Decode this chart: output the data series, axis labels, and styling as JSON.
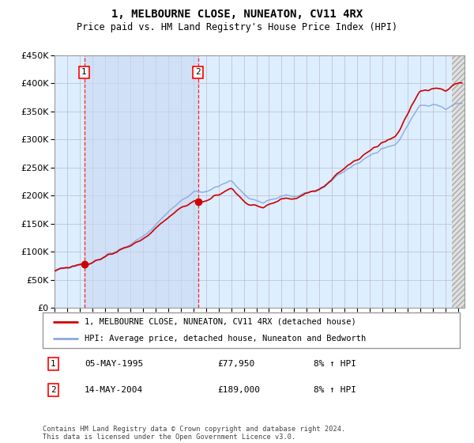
{
  "title": "1, MELBOURNE CLOSE, NUNEATON, CV11 4RX",
  "subtitle": "Price paid vs. HM Land Registry's House Price Index (HPI)",
  "legend_line1": "1, MELBOURNE CLOSE, NUNEATON, CV11 4RX (detached house)",
  "legend_line2": "HPI: Average price, detached house, Nuneaton and Bedworth",
  "annotation1_label": "1",
  "annotation1_date": "05-MAY-1995",
  "annotation1_price": "£77,950",
  "annotation1_hpi": "8% ↑ HPI",
  "annotation2_label": "2",
  "annotation2_date": "14-MAY-2004",
  "annotation2_price": "£189,000",
  "annotation2_hpi": "8% ↑ HPI",
  "footnote": "Contains HM Land Registry data © Crown copyright and database right 2024.\nThis data is licensed under the Open Government Licence v3.0.",
  "ylim": [
    0,
    450000
  ],
  "yticks": [
    0,
    50000,
    100000,
    150000,
    200000,
    250000,
    300000,
    350000,
    400000,
    450000
  ],
  "grid_color": "#bbbbcc",
  "bg_plot": "#ddeeff",
  "bg_hatch": "#e0e0e0",
  "red_line_color": "#cc0000",
  "blue_line_color": "#88aadd",
  "sale1_x": 1995.35,
  "sale1_y": 77950,
  "sale2_x": 2004.37,
  "sale2_y": 189000,
  "x_min": 1993.0,
  "x_max": 2025.5,
  "hatch_right_start": 2024.5
}
